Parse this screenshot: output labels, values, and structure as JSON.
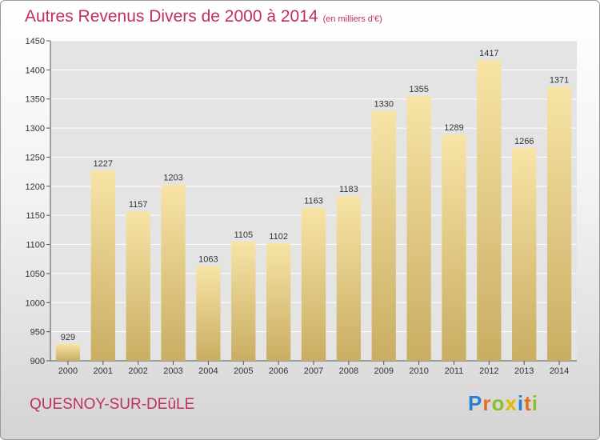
{
  "chart_data": {
    "type": "bar",
    "title": "Autres Revenus Divers de 2000 à 2014",
    "subtitle": "(en milliers d'€)",
    "categories": [
      "2000",
      "2001",
      "2002",
      "2003",
      "2004",
      "2005",
      "2006",
      "2007",
      "2008",
      "2009",
      "2010",
      "2011",
      "2012",
      "2013",
      "2014"
    ],
    "values": [
      929,
      1227,
      1157,
      1203,
      1063,
      1105,
      1102,
      1163,
      1183,
      1330,
      1355,
      1289,
      1417,
      1266,
      1371
    ],
    "ylim": [
      900,
      1450
    ],
    "yticks": [
      900,
      950,
      1000,
      1050,
      1100,
      1150,
      1200,
      1250,
      1300,
      1350,
      1400,
      1450
    ],
    "grid": true,
    "bar_color_top": "#f7e4a6",
    "bar_color_bottom": "#c9ad62"
  },
  "location": "QUESNOY-SUR-DEûLE",
  "brand": {
    "letters": [
      "P",
      "r",
      "o",
      "x",
      "i",
      "t",
      "i"
    ],
    "colors": [
      "#2b7fd1",
      "#e07020",
      "#8bbf2a",
      "#e8b800",
      "#2b7fd1",
      "#e07020",
      "#8bbf2a"
    ]
  },
  "colors": {
    "title": "#c0305a"
  }
}
